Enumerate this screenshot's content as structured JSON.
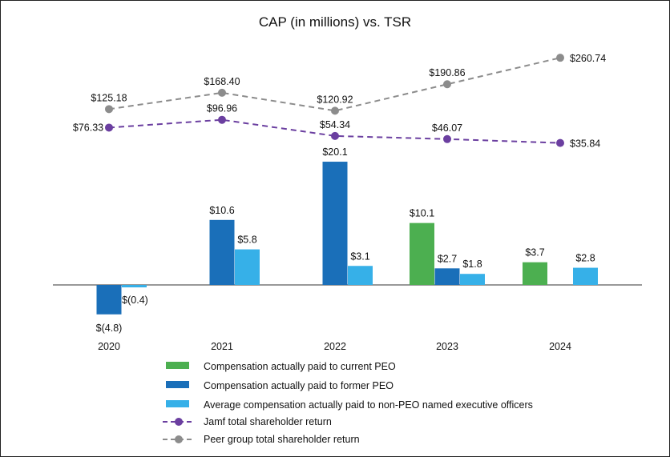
{
  "chart_data": {
    "type": "bar",
    "title": "CAP (in millions) vs. TSR",
    "categories": [
      "2020",
      "2021",
      "2022",
      "2023",
      "2024"
    ],
    "bar_series": [
      {
        "name": "Compensation actually paid to current PEO",
        "color": "#4caf50",
        "values": [
          null,
          null,
          null,
          10.1,
          3.7
        ],
        "labels": [
          null,
          null,
          null,
          "$10.1",
          "$3.7"
        ]
      },
      {
        "name": "Compensation actually paid to former PEO",
        "color": "#1a6fb9",
        "values": [
          -4.8,
          10.6,
          20.1,
          2.7,
          null
        ],
        "labels": [
          "$(4.8)",
          "$10.6",
          "$20.1",
          "$2.7",
          null
        ]
      },
      {
        "name": "Average compensation actually paid to non-PEO named executive officers",
        "color": "#36b0e8",
        "values": [
          -0.4,
          5.8,
          3.1,
          1.8,
          2.8
        ],
        "labels": [
          "$(0.4)",
          "$5.8",
          "$3.1",
          "$1.8",
          "$2.8"
        ]
      }
    ],
    "line_series": [
      {
        "name": "Jamf total shareholder return",
        "color": "#6b3fa0",
        "style": "dashed",
        "values": [
          76.33,
          96.96,
          54.34,
          46.07,
          35.84
        ],
        "labels": [
          "$76.33",
          "$96.96",
          "$54.34",
          "$46.07",
          "$35.84"
        ]
      },
      {
        "name": "Peer group total shareholder return",
        "color": "#8c8c8c",
        "style": "dashed",
        "values": [
          125.18,
          168.4,
          120.92,
          190.86,
          260.74
        ],
        "labels": [
          "$125.18",
          "$168.40",
          "$120.92",
          "$190.86",
          "$260.74"
        ]
      }
    ],
    "legend_position": "bottom"
  }
}
